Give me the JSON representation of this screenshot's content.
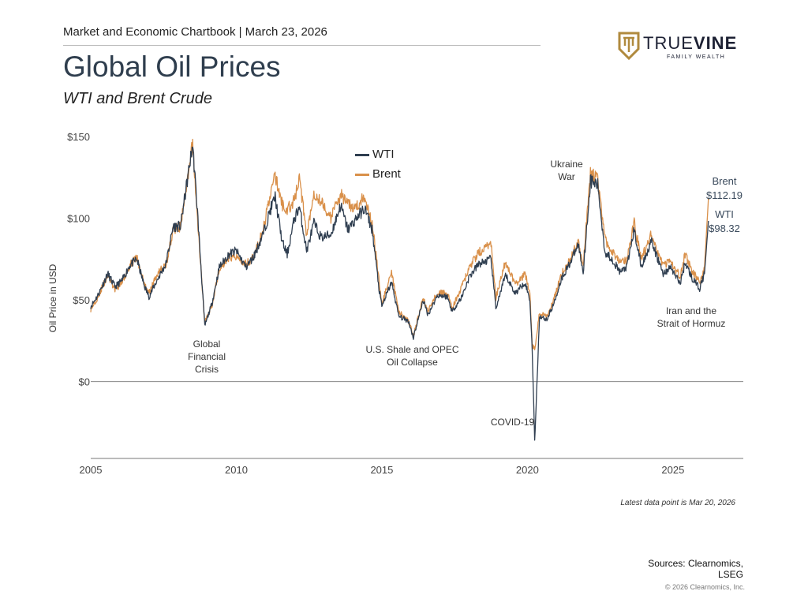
{
  "header": {
    "line": "Market and Economic Chartbook | March 23, 2026",
    "title": "Global Oil Prices",
    "subtitle": "WTI and Brent Crude"
  },
  "logo": {
    "main_light": "TRUE",
    "main_bold": "VINE",
    "sub": "FAMILY WEALTH",
    "colors": {
      "gold": "#b08a3e",
      "navy": "#1c2033"
    }
  },
  "footer": {
    "latest": "Latest data point is Mar 20, 2026",
    "sources_line1": "Sources: Clearnomics,",
    "sources_line2": "LSEG",
    "copyright": "© 2026 Clearnomics, Inc."
  },
  "chart_data": {
    "type": "line",
    "title": "Global Oil Prices",
    "subtitle": "WTI and Brent Crude",
    "xlabel": "",
    "ylabel": "Oil Price in USD",
    "xlim": [
      "2005-01",
      "2027-06"
    ],
    "ylim": [
      -47,
      150
    ],
    "x_ticks": [
      "2005",
      "2010",
      "2015",
      "2020",
      "2025"
    ],
    "y_ticks": [
      {
        "value": 150,
        "label": "$150"
      },
      {
        "value": 100,
        "label": "$100"
      },
      {
        "value": 50,
        "label": "$50"
      },
      {
        "value": 0,
        "label": "$0"
      }
    ],
    "grid": "zero line only",
    "legend": {
      "placement": "top-center",
      "entries": [
        "WTI",
        "Brent"
      ]
    },
    "x": [
      "2005-01",
      "2005-04",
      "2005-08",
      "2005-11",
      "2006-02",
      "2006-05",
      "2006-08",
      "2006-11",
      "2007-01",
      "2007-05",
      "2007-08",
      "2007-11",
      "2008-02",
      "2008-05",
      "2008-07",
      "2008-09",
      "2008-12",
      "2009-03",
      "2009-06",
      "2009-10",
      "2010-01",
      "2010-05",
      "2010-08",
      "2010-12",
      "2011-03",
      "2011-05",
      "2011-08",
      "2011-10",
      "2012-01",
      "2012-03",
      "2012-06",
      "2012-09",
      "2012-12",
      "2013-04",
      "2013-08",
      "2013-11",
      "2014-03",
      "2014-06",
      "2014-09",
      "2014-12",
      "2015-01",
      "2015-05",
      "2015-08",
      "2015-12",
      "2016-02",
      "2016-06",
      "2016-08",
      "2016-12",
      "2017-04",
      "2017-06",
      "2017-10",
      "2018-01",
      "2018-05",
      "2018-10",
      "2018-12",
      "2019-04",
      "2019-08",
      "2019-12",
      "2020-02",
      "2020-03",
      "2020-04",
      "2020-06",
      "2020-09",
      "2020-12",
      "2021-03",
      "2021-07",
      "2021-10",
      "2021-12",
      "2022-03",
      "2022-06",
      "2022-09",
      "2022-12",
      "2023-03",
      "2023-06",
      "2023-09",
      "2023-12",
      "2024-04",
      "2024-09",
      "2024-12",
      "2025-04",
      "2025-06",
      "2025-09",
      "2025-12",
      "2026-02",
      "2026-03-20"
    ],
    "series": [
      {
        "name": "WTI",
        "color": "#2f3e50",
        "values": [
          46,
          53,
          66,
          58,
          62,
          71,
          75,
          59,
          52,
          64,
          72,
          95,
          95,
          125,
          145,
          104,
          34,
          48,
          70,
          78,
          80,
          70,
          76,
          90,
          105,
          113,
          85,
          78,
          100,
          107,
          80,
          97,
          88,
          90,
          108,
          93,
          101,
          106,
          93,
          55,
          46,
          61,
          40,
          37,
          27,
          50,
          41,
          53,
          52,
          43,
          52,
          64,
          72,
          75,
          45,
          65,
          54,
          61,
          50,
          20,
          -37,
          40,
          38,
          48,
          63,
          74,
          84,
          67,
          123,
          120,
          79,
          75,
          67,
          70,
          93,
          70,
          86,
          66,
          70,
          60,
          73,
          63,
          57,
          66,
          98.32
        ]
      },
      {
        "name": "Brent",
        "color": "#d9904a",
        "values": [
          44,
          52,
          65,
          56,
          61,
          71,
          76,
          60,
          54,
          68,
          71,
          93,
          95,
          123,
          146,
          99,
          36,
          47,
          69,
          76,
          77,
          72,
          76,
          92,
          115,
          126,
          108,
          105,
          111,
          125,
          90,
          116,
          110,
          100,
          115,
          108,
          107,
          114,
          97,
          60,
          48,
          66,
          43,
          37,
          28,
          51,
          43,
          55,
          54,
          45,
          58,
          70,
          79,
          85,
          51,
          74,
          59,
          66,
          55,
          23,
          19,
          42,
          40,
          51,
          66,
          76,
          86,
          72,
          128,
          123,
          87,
          80,
          73,
          74,
          97,
          75,
          90,
          71,
          74,
          64,
          78,
          67,
          61,
          70,
          112.19
        ]
      }
    ],
    "end_labels": [
      {
        "series": "Brent",
        "name": "Brent",
        "value": "$112.19"
      },
      {
        "series": "WTI",
        "name": "WTI",
        "value": "$98.32"
      }
    ],
    "annotations": [
      {
        "line1": "Global",
        "line2": "Financial",
        "line3": "Crisis"
      },
      {
        "line1": "U.S. Shale and OPEC",
        "line2": "Oil Collapse"
      },
      {
        "line1": "COVID-19"
      },
      {
        "line1": "Ukraine",
        "line2": "War"
      },
      {
        "line1": "Iran and the",
        "line2": "Strait of Hormuz"
      }
    ]
  }
}
